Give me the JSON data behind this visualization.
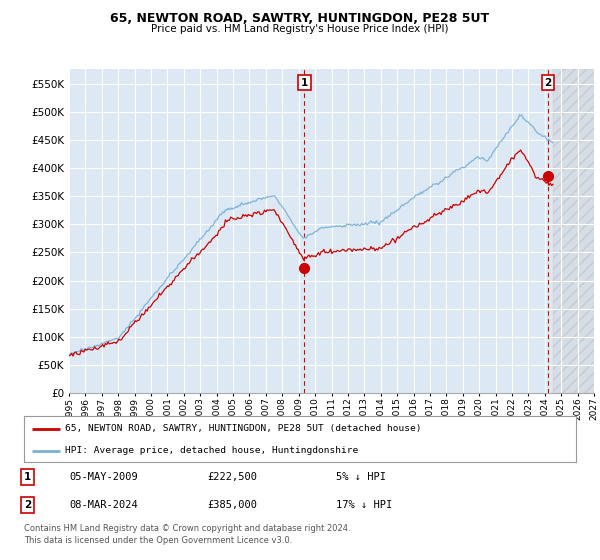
{
  "title1": "65, NEWTON ROAD, SAWTRY, HUNTINGDON, PE28 5UT",
  "title2": "Price paid vs. HM Land Registry's House Price Index (HPI)",
  "background_color": "#ffffff",
  "plot_bg_color": "#dce9f5",
  "grid_color": "#ffffff",
  "hpi_color": "#7ab0d8",
  "price_color": "#cc0000",
  "annotation1": {
    "label": "1",
    "date_str": "05-MAY-2009",
    "price": 222500,
    "pct": "5%",
    "direction": "↓",
    "x_year": 2009.35
  },
  "annotation2": {
    "label": "2",
    "date_str": "08-MAR-2024",
    "price": 385000,
    "pct": "17%",
    "direction": "↓",
    "x_year": 2024.18
  },
  "legend_line1": "65, NEWTON ROAD, SAWTRY, HUNTINGDON, PE28 5UT (detached house)",
  "legend_line2": "HPI: Average price, detached house, Huntingdonshire",
  "footer1": "Contains HM Land Registry data © Crown copyright and database right 2024.",
  "footer2": "This data is licensed under the Open Government Licence v3.0.",
  "xmin": 1995,
  "xmax": 2027,
  "ymin": 0,
  "ymax": 575000,
  "yticks": [
    0,
    50000,
    100000,
    150000,
    200000,
    250000,
    300000,
    350000,
    400000,
    450000,
    500000,
    550000
  ],
  "xticks": [
    1995,
    1996,
    1997,
    1998,
    1999,
    2000,
    2001,
    2002,
    2003,
    2004,
    2005,
    2006,
    2007,
    2008,
    2009,
    2010,
    2011,
    2012,
    2013,
    2014,
    2015,
    2016,
    2017,
    2018,
    2019,
    2020,
    2021,
    2022,
    2023,
    2024,
    2025,
    2026,
    2027
  ],
  "hatch_xstart": 2024.5,
  "hatch_xend": 2027
}
